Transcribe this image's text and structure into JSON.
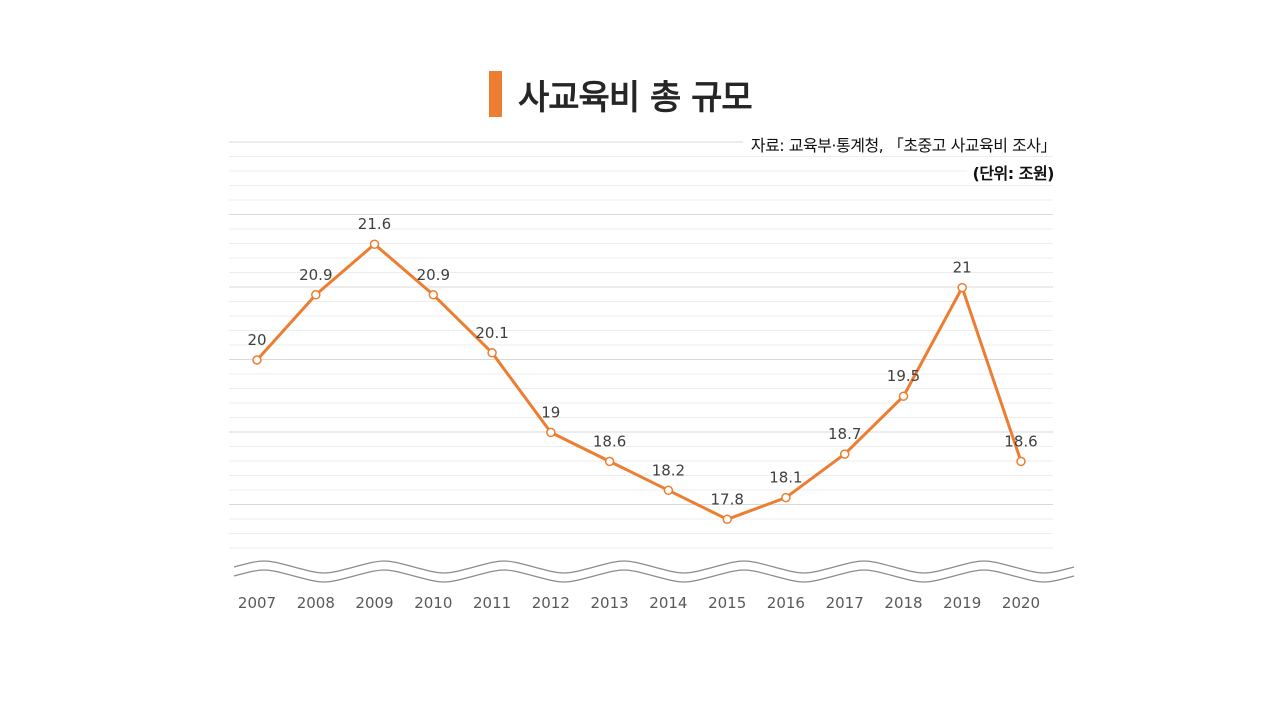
{
  "title": "사교육비 총 규모",
  "source": "자료: 교육부·통계청, 「초중고 사교육비 조사」",
  "unit": "(단위: 조원)",
  "colors": {
    "accent": "#ED7D31",
    "grid_major": "#d9d9d9",
    "grid_minor": "#ededed",
    "axis_text": "#595959",
    "label_text": "#404040"
  },
  "chart_data": {
    "type": "line",
    "title": "사교육비 총 규모",
    "xlabel": "",
    "ylabel": "",
    "unit": "조원",
    "categories": [
      "2007",
      "2008",
      "2009",
      "2010",
      "2011",
      "2012",
      "2013",
      "2014",
      "2015",
      "2016",
      "2017",
      "2018",
      "2019",
      "2020"
    ],
    "series": [
      {
        "name": "사교육비 총 규모",
        "values": [
          20,
          20.9,
          21.6,
          20.9,
          20.1,
          19,
          18.6,
          18.2,
          17.8,
          18.1,
          18.7,
          19.5,
          21,
          18.6
        ]
      }
    ],
    "data_labels": [
      "20",
      "20.9",
      "21.6",
      "20.9",
      "20.1",
      "19",
      "18.6",
      "18.2",
      "17.8",
      "18.1",
      "18.7",
      "19.5",
      "21",
      "18.6"
    ],
    "ylim": [
      17,
      22
    ],
    "axis_break": true,
    "grid": true,
    "legend": "none"
  }
}
